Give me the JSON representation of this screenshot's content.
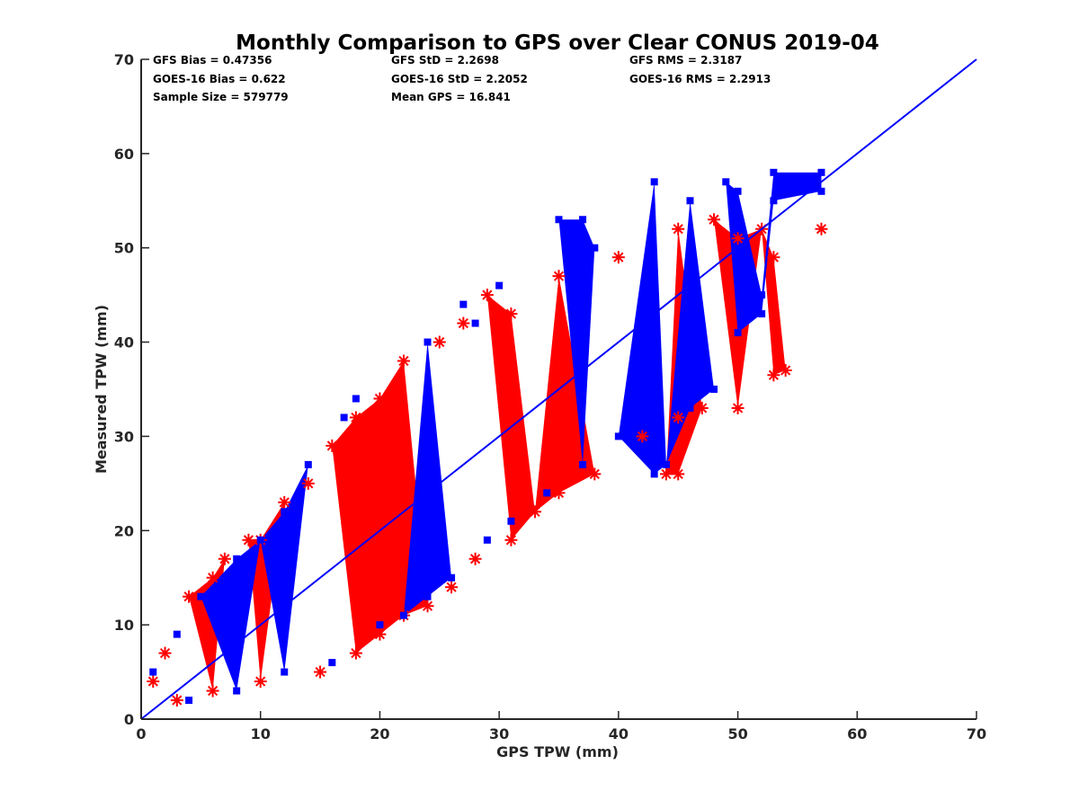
{
  "chart_data": {
    "type": "scatter",
    "title": "Monthly Comparison to GPS over Clear CONUS 2019-04",
    "xlabel": "GPS TPW (mm)",
    "ylabel": "Measured TPW (mm)",
    "xlim": [
      0,
      70
    ],
    "ylim": [
      0,
      70
    ],
    "xticks": [
      "0",
      "10",
      "20",
      "30",
      "40",
      "50",
      "60",
      "70"
    ],
    "yticks": [
      "0",
      "10",
      "20",
      "30",
      "40",
      "50",
      "60",
      "70"
    ],
    "grid": false,
    "stats": {
      "gfs_bias": "GFS Bias = 0.47356",
      "gfs_std": "GFS StD = 2.2698",
      "gfs_rms": "GFS RMS = 2.3187",
      "goes_bias": "GOES-16 Bias = 0.622",
      "goes_std": "GOES-16 StD = 2.2052",
      "goes_rms": "GOES-16 RMS = 2.2913",
      "sample_size": "Sample Size = 579779",
      "mean_gps": "Mean GPS = 16.841"
    },
    "reference_line": {
      "name": "1:1 line",
      "color": "#0000ff",
      "points": [
        [
          0,
          0
        ],
        [
          70,
          70
        ]
      ]
    },
    "series": [
      {
        "name": "GFS",
        "marker": "asterisk",
        "color": "#ff0000",
        "points": [
          [
            1,
            4
          ],
          [
            2,
            7
          ],
          [
            4,
            13
          ],
          [
            6,
            15
          ],
          [
            7,
            17
          ],
          [
            9,
            19
          ],
          [
            10,
            19
          ],
          [
            12,
            23
          ],
          [
            14,
            25
          ],
          [
            16,
            29
          ],
          [
            18,
            32
          ],
          [
            20,
            34
          ],
          [
            22,
            38
          ],
          [
            25,
            40
          ],
          [
            27,
            42
          ],
          [
            29,
            45
          ],
          [
            31,
            43
          ],
          [
            35,
            47
          ],
          [
            40,
            49
          ],
          [
            45,
            52
          ],
          [
            48,
            53
          ],
          [
            50,
            51
          ],
          [
            52,
            52
          ],
          [
            53,
            49
          ],
          [
            57,
            52
          ],
          [
            54,
            37
          ],
          [
            53,
            36.5
          ],
          [
            50,
            33
          ],
          [
            47,
            33
          ],
          [
            45,
            32
          ],
          [
            44,
            26
          ],
          [
            45,
            26
          ],
          [
            42,
            30
          ],
          [
            38,
            26
          ],
          [
            35,
            24
          ],
          [
            33,
            22
          ],
          [
            31,
            19
          ],
          [
            28,
            17
          ],
          [
            26,
            14
          ],
          [
            24,
            12
          ],
          [
            22,
            11
          ],
          [
            20,
            9
          ],
          [
            18,
            7
          ],
          [
            15,
            5
          ],
          [
            10,
            4
          ],
          [
            6,
            3
          ],
          [
            3,
            2
          ]
        ]
      },
      {
        "name": "GOES-16",
        "marker": "square",
        "color": "#0000ff",
        "points": [
          [
            1,
            5
          ],
          [
            3,
            9
          ],
          [
            5,
            13
          ],
          [
            8,
            17
          ],
          [
            10,
            19
          ],
          [
            12,
            22
          ],
          [
            14,
            27
          ],
          [
            17,
            32
          ],
          [
            18,
            34
          ],
          [
            24,
            40
          ],
          [
            28,
            42
          ],
          [
            27,
            44
          ],
          [
            30,
            46
          ],
          [
            35,
            53
          ],
          [
            37,
            53
          ],
          [
            38,
            50
          ],
          [
            43,
            57
          ],
          [
            46,
            55
          ],
          [
            49,
            57
          ],
          [
            50,
            56
          ],
          [
            53,
            55
          ],
          [
            53,
            58
          ],
          [
            57,
            58
          ],
          [
            57,
            56
          ],
          [
            52,
            45
          ],
          [
            52,
            43
          ],
          [
            50,
            41
          ],
          [
            48,
            35
          ],
          [
            46,
            33
          ],
          [
            44,
            27
          ],
          [
            43,
            26
          ],
          [
            40,
            30
          ],
          [
            37,
            27
          ],
          [
            34,
            24
          ],
          [
            31,
            21
          ],
          [
            29,
            19
          ],
          [
            26,
            15
          ],
          [
            24,
            13
          ],
          [
            22,
            11
          ],
          [
            20,
            10
          ],
          [
            16,
            6
          ],
          [
            12,
            5
          ],
          [
            8,
            3
          ],
          [
            4,
            2
          ]
        ]
      }
    ]
  }
}
